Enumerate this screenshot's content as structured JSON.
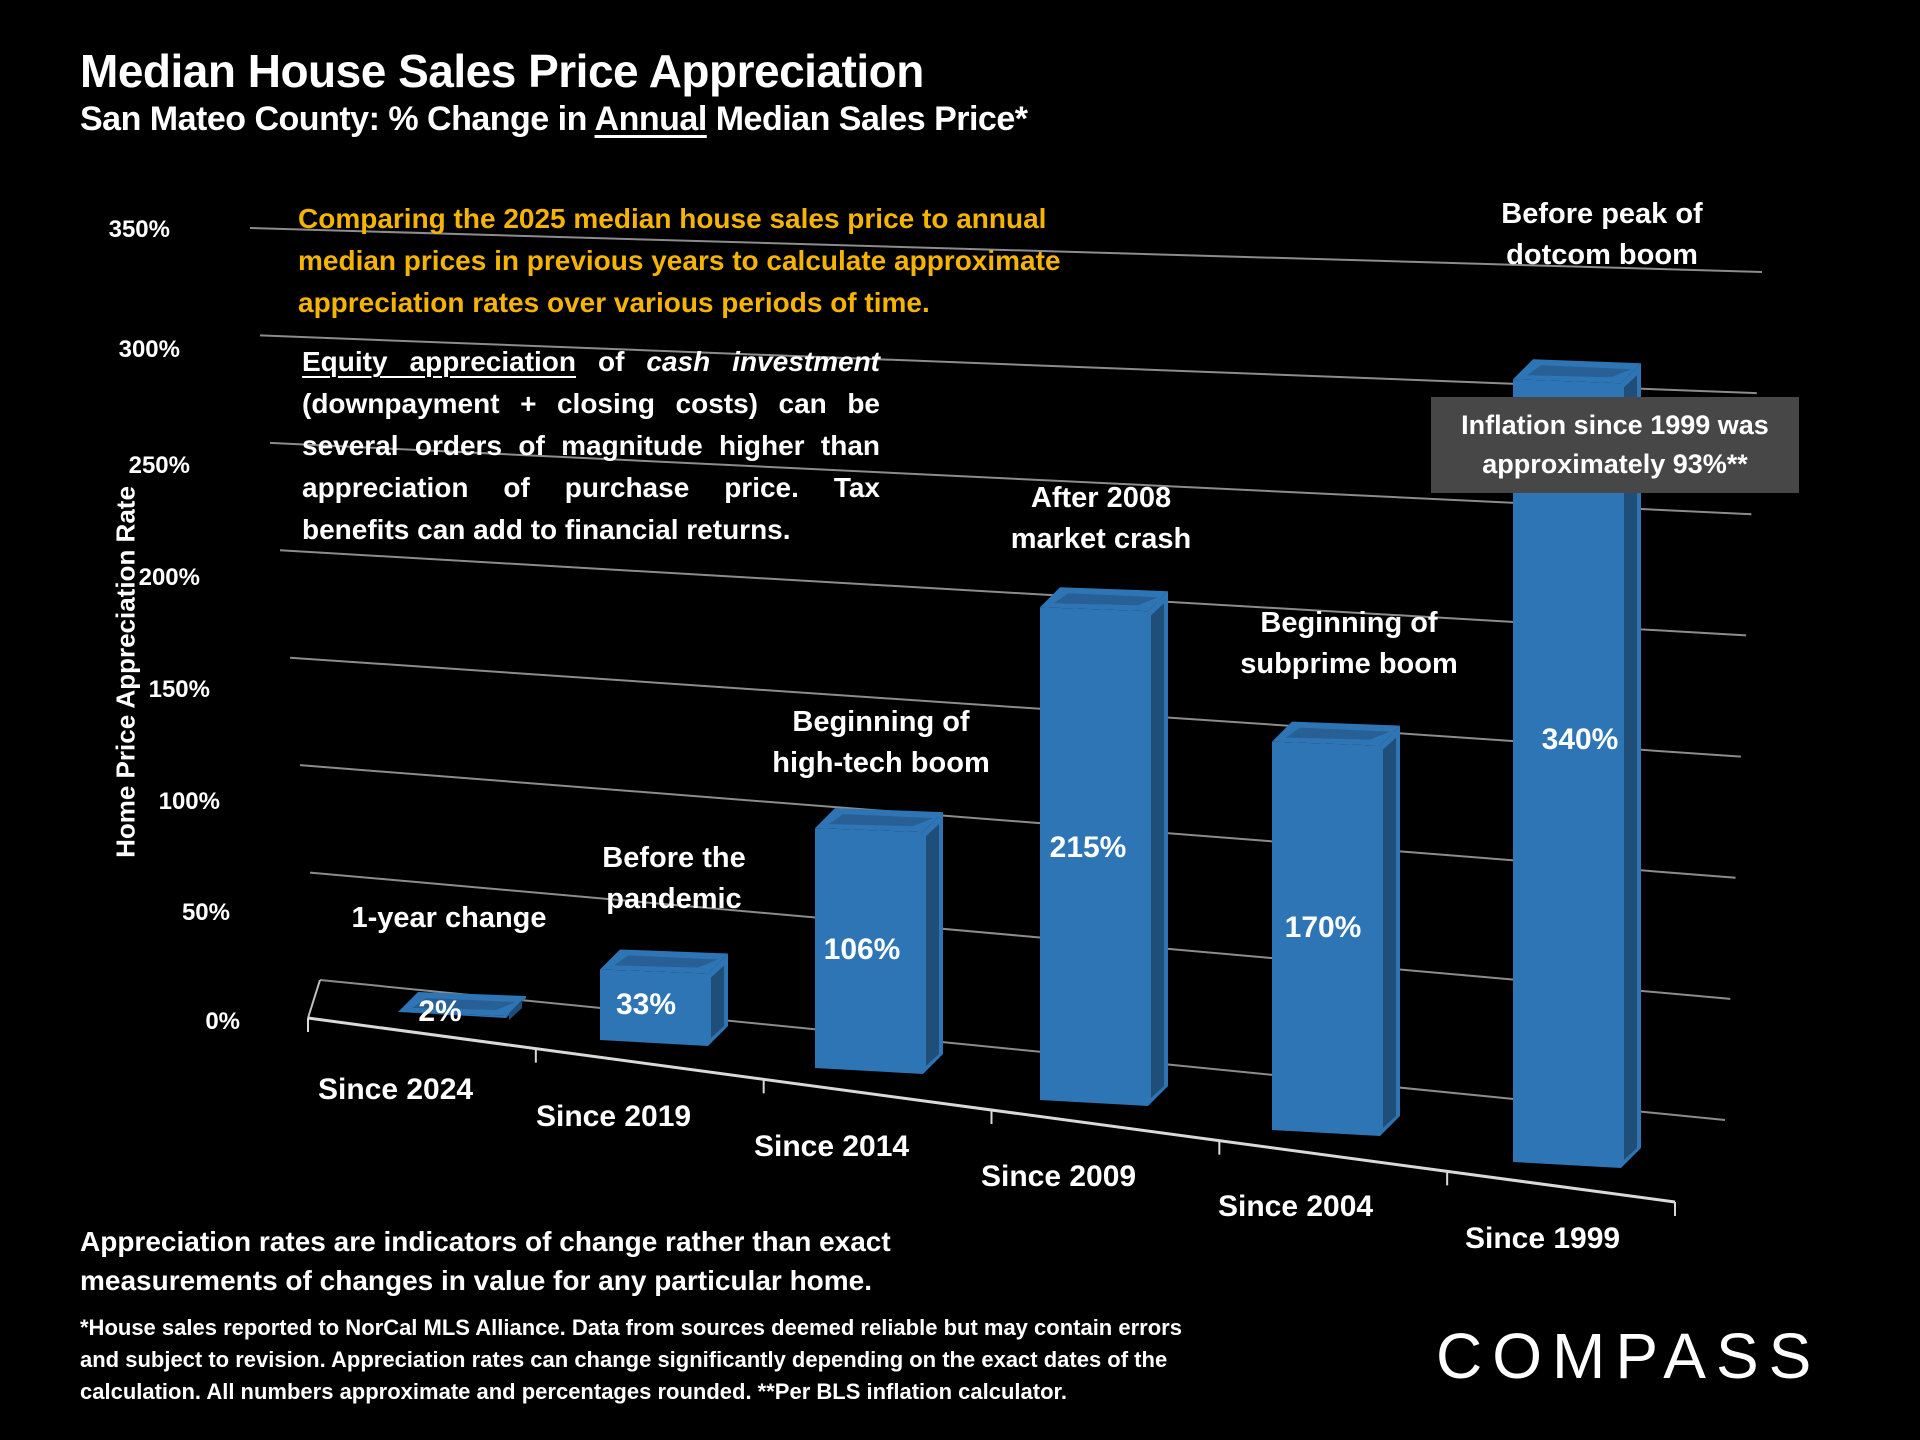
{
  "title": "Median House Sales Price Appreciation",
  "subtitle": {
    "prefix": "San Mateo County: % Change in ",
    "underlined": "Annual",
    "suffix": " Median Sales Price*"
  },
  "intro_text": "Comparing the 2025 median house sales price to annual median prices in previous years to calculate approximate appreciation rates over various periods of time.",
  "equity_note": {
    "underlined": "Equity appreciation",
    "of": " of ",
    "italic": "cash investment",
    "rest": " (downpayment + closing costs) can be several orders of magnitude higher than appreciation of purchase price. Tax benefits can add to financial returns."
  },
  "inflation_box": {
    "line1": "Inflation since 1999 was",
    "line2": "approximately 93%**"
  },
  "bottom_note": {
    "line1": "Appreciation rates are indicators of change rather than exact",
    "line2": "measurements of changes in value for any particular home."
  },
  "footnote": {
    "line1": "*House sales reported to NorCal MLS Alliance. Data from sources deemed reliable but may contain errors",
    "line2": "and subject to revision. Appreciation rates can change significantly depending on the exact dates of the",
    "line3": "calculation. All numbers  approximate and percentages rounded. **Per BLS inflation calculator."
  },
  "logo": "COMPASS",
  "colors": {
    "bar_front": "#2e75b6",
    "bar_side": "#1f4e79",
    "bar_top": "#285f94",
    "annotation_yellow": "#f5b400",
    "inflation_box_bg": "#474747",
    "grid": "#8c8c8c"
  },
  "chart_data": {
    "type": "bar",
    "style": "3d-column",
    "title": "Median House Sales Price Appreciation",
    "xlabel": "",
    "ylabel": "Home Price Appreciation Rate",
    "ylim": [
      0,
      350
    ],
    "yticks": [
      0,
      50,
      100,
      150,
      200,
      250,
      300,
      350
    ],
    "ytick_labels": [
      "0%",
      "50%",
      "100%",
      "150%",
      "200%",
      "250%",
      "300%",
      "350%"
    ],
    "grid": true,
    "categories": [
      "Since 2024",
      "Since 2019",
      "Since 2014",
      "Since 2009",
      "Since 2004",
      "Since 1999"
    ],
    "values": [
      2,
      33,
      106,
      215,
      170,
      340
    ],
    "data_labels": [
      "2%",
      "33%",
      "106%",
      "215%",
      "170%",
      "340%"
    ],
    "annotations": [
      [
        "1-year change"
      ],
      [
        "Before the",
        "pandemic"
      ],
      [
        "Beginning of",
        "high-tech boom"
      ],
      [
        "After 2008",
        "market crash"
      ],
      [
        "Beginning of",
        "subprime boom"
      ],
      [
        "Before peak of",
        "dotcom boom"
      ]
    ]
  }
}
